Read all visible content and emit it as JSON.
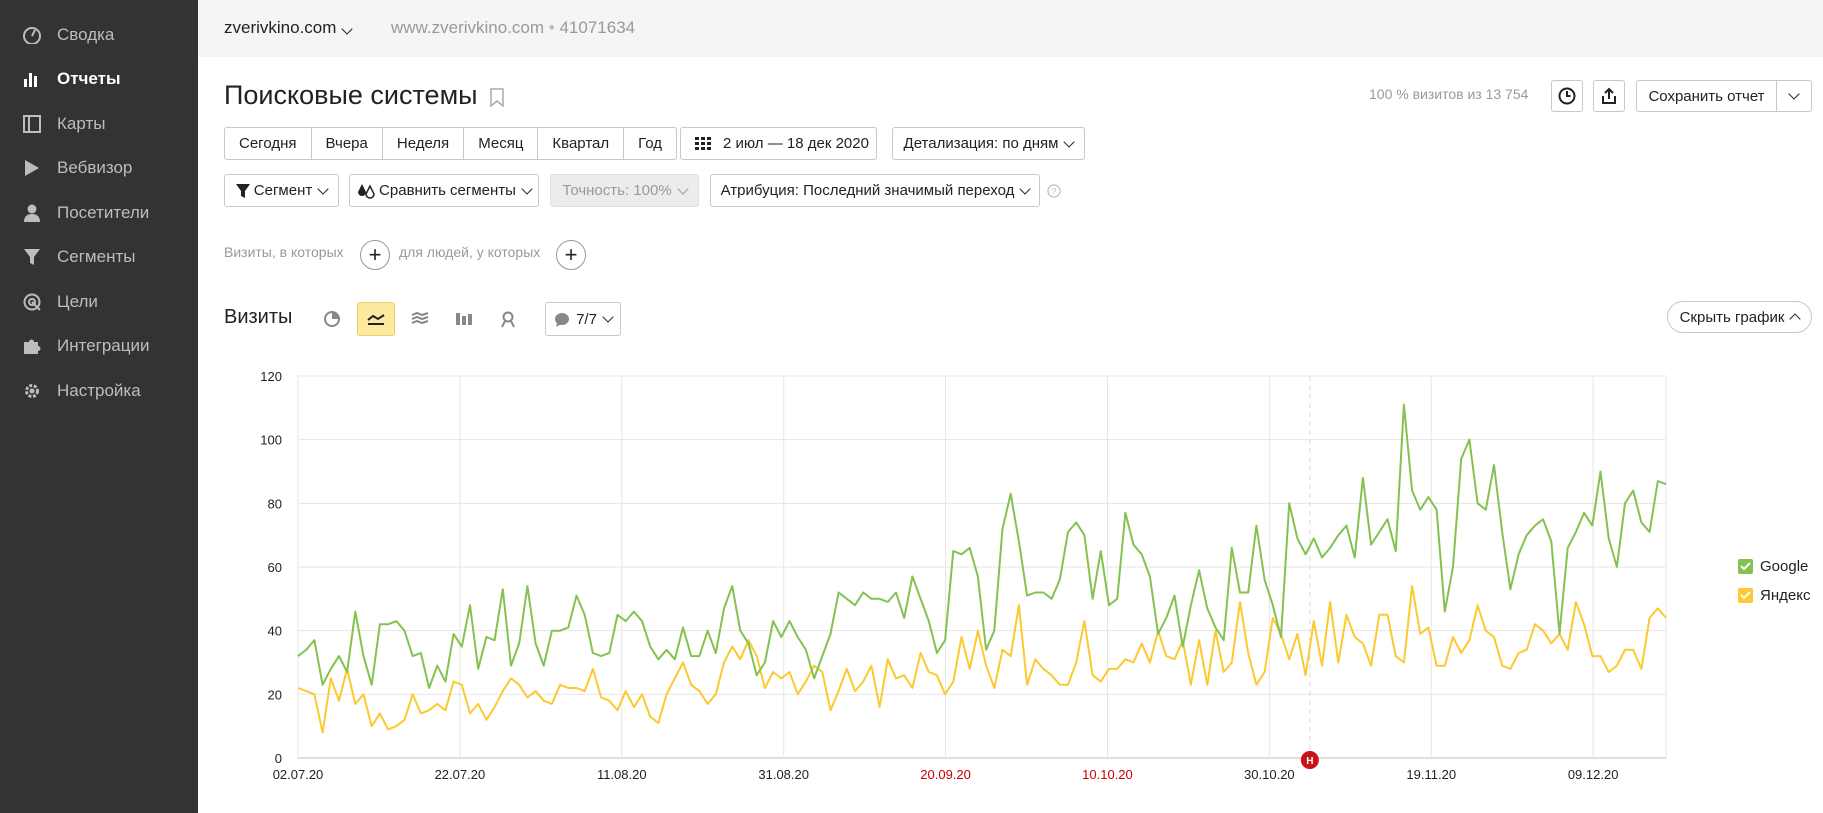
{
  "sidebar": {
    "items": [
      {
        "label": "Сводка",
        "icon": "gauge-icon"
      },
      {
        "label": "Отчеты",
        "icon": "bar-chart-icon"
      },
      {
        "label": "Карты",
        "icon": "map-icon"
      },
      {
        "label": "Вебвизор",
        "icon": "play-icon"
      },
      {
        "label": "Посетители",
        "icon": "user-icon"
      },
      {
        "label": "Сегменты",
        "icon": "funnel-icon"
      },
      {
        "label": "Цели",
        "icon": "target-icon"
      },
      {
        "label": "Интеграции",
        "icon": "puzzle-icon"
      },
      {
        "label": "Настройка",
        "icon": "gear-icon"
      }
    ],
    "active_index": 1
  },
  "header": {
    "site_name": "zverivkino.com",
    "site_url": "www.zverivkino.com",
    "counter_id": "41071634"
  },
  "report": {
    "title": "Поисковые системы",
    "visits_info": "100 % визитов из 13 754",
    "save_label": "Сохранить отчет"
  },
  "period": {
    "options": [
      "Сегодня",
      "Вчера",
      "Неделя",
      "Месяц",
      "Квартал",
      "Год"
    ],
    "date_range": "2 июл — 18 дек 2020",
    "detail": "Детализация: по дням"
  },
  "filters": {
    "segment": "Сегмент",
    "compare": "Сравнить сегменты",
    "accuracy": "Точность: 100%",
    "attribution": "Атрибуция: Последний значимый переход",
    "visits_where": "Визиты, в которых",
    "people_where": "для людей, у которых"
  },
  "chart_panel": {
    "label": "Визиты",
    "notes_count": "7/7",
    "hide_label": "Скрыть график"
  },
  "colors": {
    "google": "#84c250",
    "yandex": "#fcc931",
    "holiday": "#cc0000",
    "sidebar_bg": "#333333",
    "active_chart_type": "#fde9a0"
  },
  "chart_data": {
    "type": "line",
    "ylim": [
      0,
      120
    ],
    "yticks": [
      "0",
      "20",
      "40",
      "60",
      "80",
      "100",
      "120"
    ],
    "x_tick_labels": [
      "02.07.20",
      "22.07.20",
      "11.08.20",
      "31.08.20",
      "20.09.20",
      "10.10.20",
      "30.10.20",
      "19.11.20",
      "09.12.20"
    ],
    "x_tick_holiday": [
      false,
      false,
      false,
      false,
      true,
      true,
      false,
      false,
      false
    ],
    "x_start": "2020-07-02",
    "x_end": "2020-12-18",
    "marker": {
      "date": "2020-11-04",
      "label": "H"
    },
    "series": [
      {
        "name": "Google",
        "color": "#84c250",
        "values": [
          32,
          34,
          37,
          23,
          28,
          32,
          27,
          46,
          32,
          23,
          42,
          42,
          43,
          40,
          32,
          33,
          22,
          29,
          24,
          39,
          35,
          48,
          28,
          38,
          37,
          53,
          29,
          36,
          54,
          36,
          29,
          40,
          40,
          41,
          51,
          45,
          33,
          32,
          33,
          45,
          43,
          46,
          43,
          35,
          31,
          34,
          31,
          41,
          32,
          32,
          40,
          33,
          47,
          54,
          40,
          36,
          26,
          30,
          43,
          38,
          43,
          38,
          34,
          25,
          32,
          39,
          52,
          50,
          48,
          52,
          50,
          50,
          49,
          52,
          44,
          57,
          50,
          43,
          33,
          37,
          65,
          64,
          66,
          57,
          34,
          40,
          72,
          83,
          68,
          51,
          52,
          52,
          50,
          56,
          71,
          74,
          70,
          50,
          65,
          48,
          50,
          77,
          67,
          64,
          57,
          39,
          44,
          51,
          35,
          48,
          59,
          47,
          41,
          37,
          66,
          52,
          52,
          73,
          56,
          48,
          38,
          80,
          69,
          64,
          69,
          63,
          66,
          70,
          73,
          63,
          88,
          67,
          71,
          75,
          65,
          111,
          84,
          78,
          82,
          78,
          46,
          60,
          94,
          100,
          80,
          78,
          92,
          71,
          53,
          64,
          70,
          73,
          75,
          68,
          39,
          66,
          71,
          77,
          73,
          90,
          69,
          60,
          80,
          84,
          74,
          71,
          87,
          86
        ]
      },
      {
        "name": "Яндекс",
        "color": "#fcc931",
        "values": [
          22,
          21,
          20,
          8,
          25,
          18,
          28,
          17,
          20,
          10,
          14,
          9,
          10,
          12,
          20,
          14,
          15,
          17,
          15,
          24,
          23,
          14,
          17,
          12,
          16,
          21,
          25,
          23,
          19,
          21,
          18,
          17,
          23,
          22,
          22,
          21,
          28,
          19,
          18,
          15,
          21,
          16,
          20,
          13,
          11,
          20,
          25,
          30,
          23,
          21,
          17,
          20,
          30,
          35,
          31,
          37,
          32,
          22,
          27,
          25,
          27,
          20,
          24,
          29,
          27,
          15,
          21,
          28,
          21,
          24,
          29,
          16,
          31,
          25,
          26,
          22,
          33,
          27,
          26,
          20,
          24,
          38,
          28,
          40,
          29,
          22,
          34,
          32,
          48,
          23,
          31,
          28,
          26,
          23,
          23,
          30,
          43,
          26,
          24,
          28,
          28,
          31,
          30,
          36,
          30,
          40,
          32,
          31,
          37,
          23,
          37,
          23,
          40,
          27,
          30,
          49,
          33,
          23,
          27,
          44,
          39,
          31,
          39,
          26,
          43,
          29,
          49,
          30,
          45,
          38,
          36,
          29,
          45,
          45,
          32,
          30,
          54,
          39,
          41,
          29,
          29,
          38,
          33,
          37,
          48,
          40,
          38,
          29,
          28,
          33,
          34,
          42,
          40,
          36,
          39,
          34,
          49,
          42,
          32,
          32,
          27,
          29,
          34,
          34,
          28,
          44,
          47,
          44
        ]
      }
    ]
  }
}
